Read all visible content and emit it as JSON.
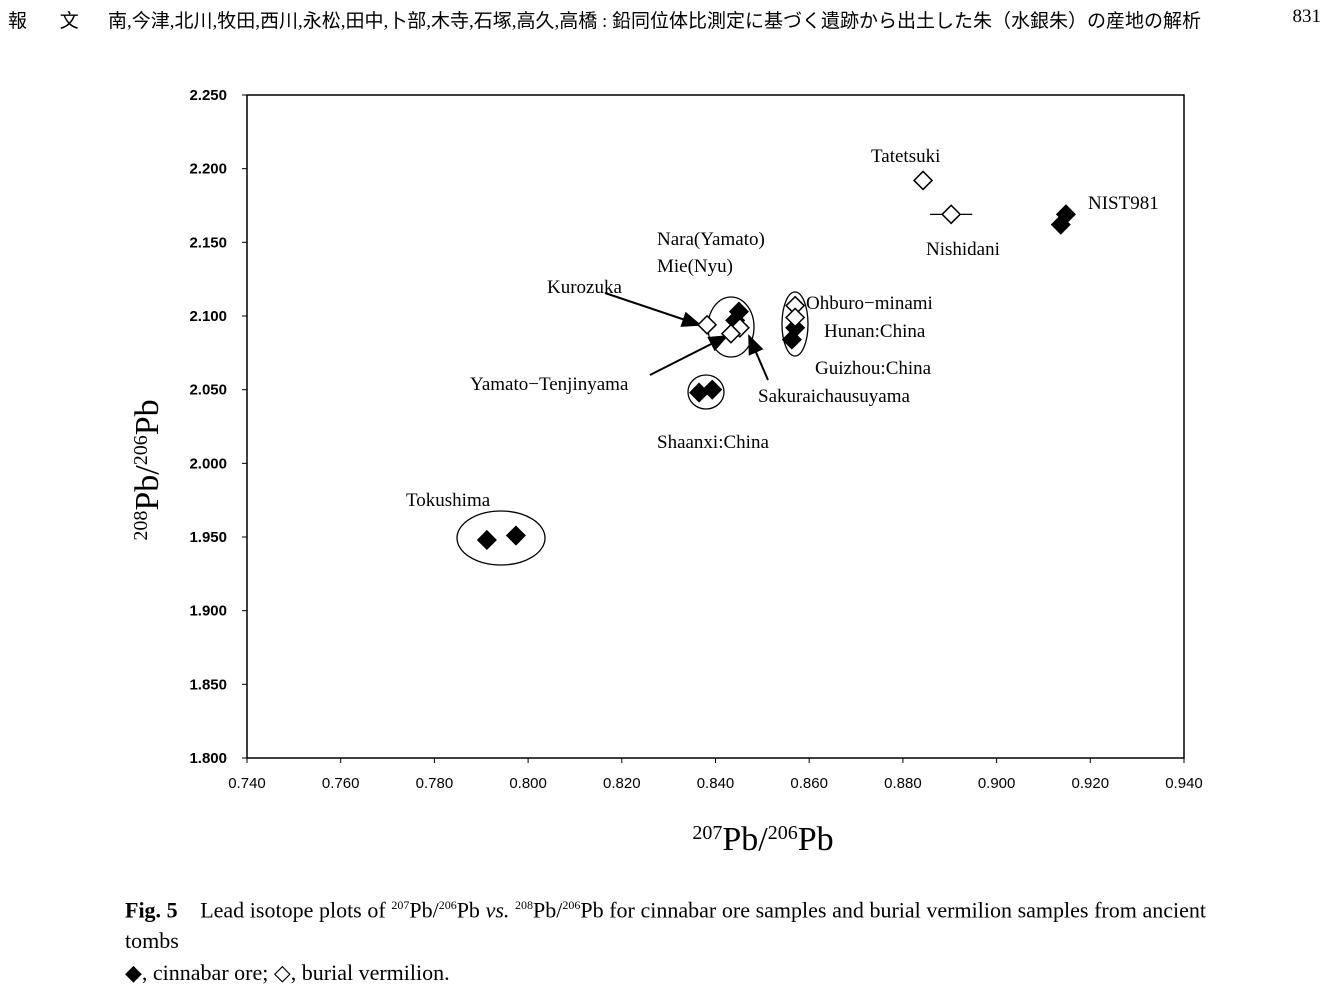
{
  "header": {
    "section": "報 文",
    "authors_title": "南,今津,北川,牧田,西川,永松,田中,卜部,木寺,石塚,高久,高橋 : 鉛同位体比測定に基づく遺跡から出土した朱（水銀朱）の産地の解析",
    "page": "831"
  },
  "chart_data": {
    "type": "scatter",
    "xlabel": {
      "sup1": "207",
      "t1": "Pb/",
      "sup2": "206",
      "t2": "Pb"
    },
    "ylabel": {
      "sup1": "208",
      "t1": "Pb/",
      "sup2": "206",
      "t2": "Pb"
    },
    "xlim": [
      0.74,
      0.94
    ],
    "ylim": [
      1.8,
      2.25
    ],
    "xticks": [
      "0.740",
      "0.760",
      "0.780",
      "0.800",
      "0.820",
      "0.840",
      "0.860",
      "0.880",
      "0.900",
      "0.920",
      "0.940"
    ],
    "yticks": [
      "1.800",
      "1.850",
      "1.900",
      "1.950",
      "2.000",
      "2.050",
      "2.100",
      "2.150",
      "2.200",
      "2.250"
    ],
    "grid": false,
    "series": [
      {
        "marker": "filled-diamond",
        "points": [
          [
            0.7912,
            1.948
          ],
          [
            0.7974,
            1.951
          ],
          [
            0.8365,
            2.048
          ],
          [
            0.8393,
            2.05
          ],
          [
            0.845,
            2.103
          ],
          [
            0.8442,
            2.097
          ],
          [
            0.857,
            2.092
          ],
          [
            0.8563,
            2.084
          ],
          [
            0.9148,
            2.169
          ],
          [
            0.9137,
            2.162
          ]
        ]
      },
      {
        "marker": "open-diamond",
        "points": [
          [
            0.8382,
            2.094
          ],
          [
            0.8452,
            2.092
          ],
          [
            0.8433,
            2.088
          ],
          [
            0.857,
            2.107
          ],
          [
            0.857,
            2.099
          ],
          [
            0.8843,
            2.192
          ],
          [
            0.8903,
            2.169
          ]
        ],
        "xerr": [
          0,
          0,
          0,
          0,
          0,
          0,
          0.0045
        ]
      }
    ],
    "annotations": [
      "Tatetsuki",
      "Nishidani",
      "NIST981",
      "Nara(Yamato)",
      "Mie(Nyu)",
      "Kurozuka",
      "Ohburo−minami",
      "Hunan:China",
      "Guizhou:China",
      "Yamato−Tenjinyama",
      "Sakuraichausuyama",
      "Shaanxi:China",
      "Tokushima"
    ]
  },
  "caption": {
    "fig": "Fig. 5",
    "text_a": "Lead isotope plots of ",
    "s1": "207",
    "t1": "Pb/",
    "s2": "206",
    "t2": "Pb ",
    "vs": "vs.",
    "s3": "208",
    "t3": "Pb/",
    "s4": "206",
    "text_b": "Pb for cinnabar ore samples and burial vermilion samples from ancient tombs",
    "legend": "◆, cinnabar ore; ◇, burial vermilion."
  }
}
